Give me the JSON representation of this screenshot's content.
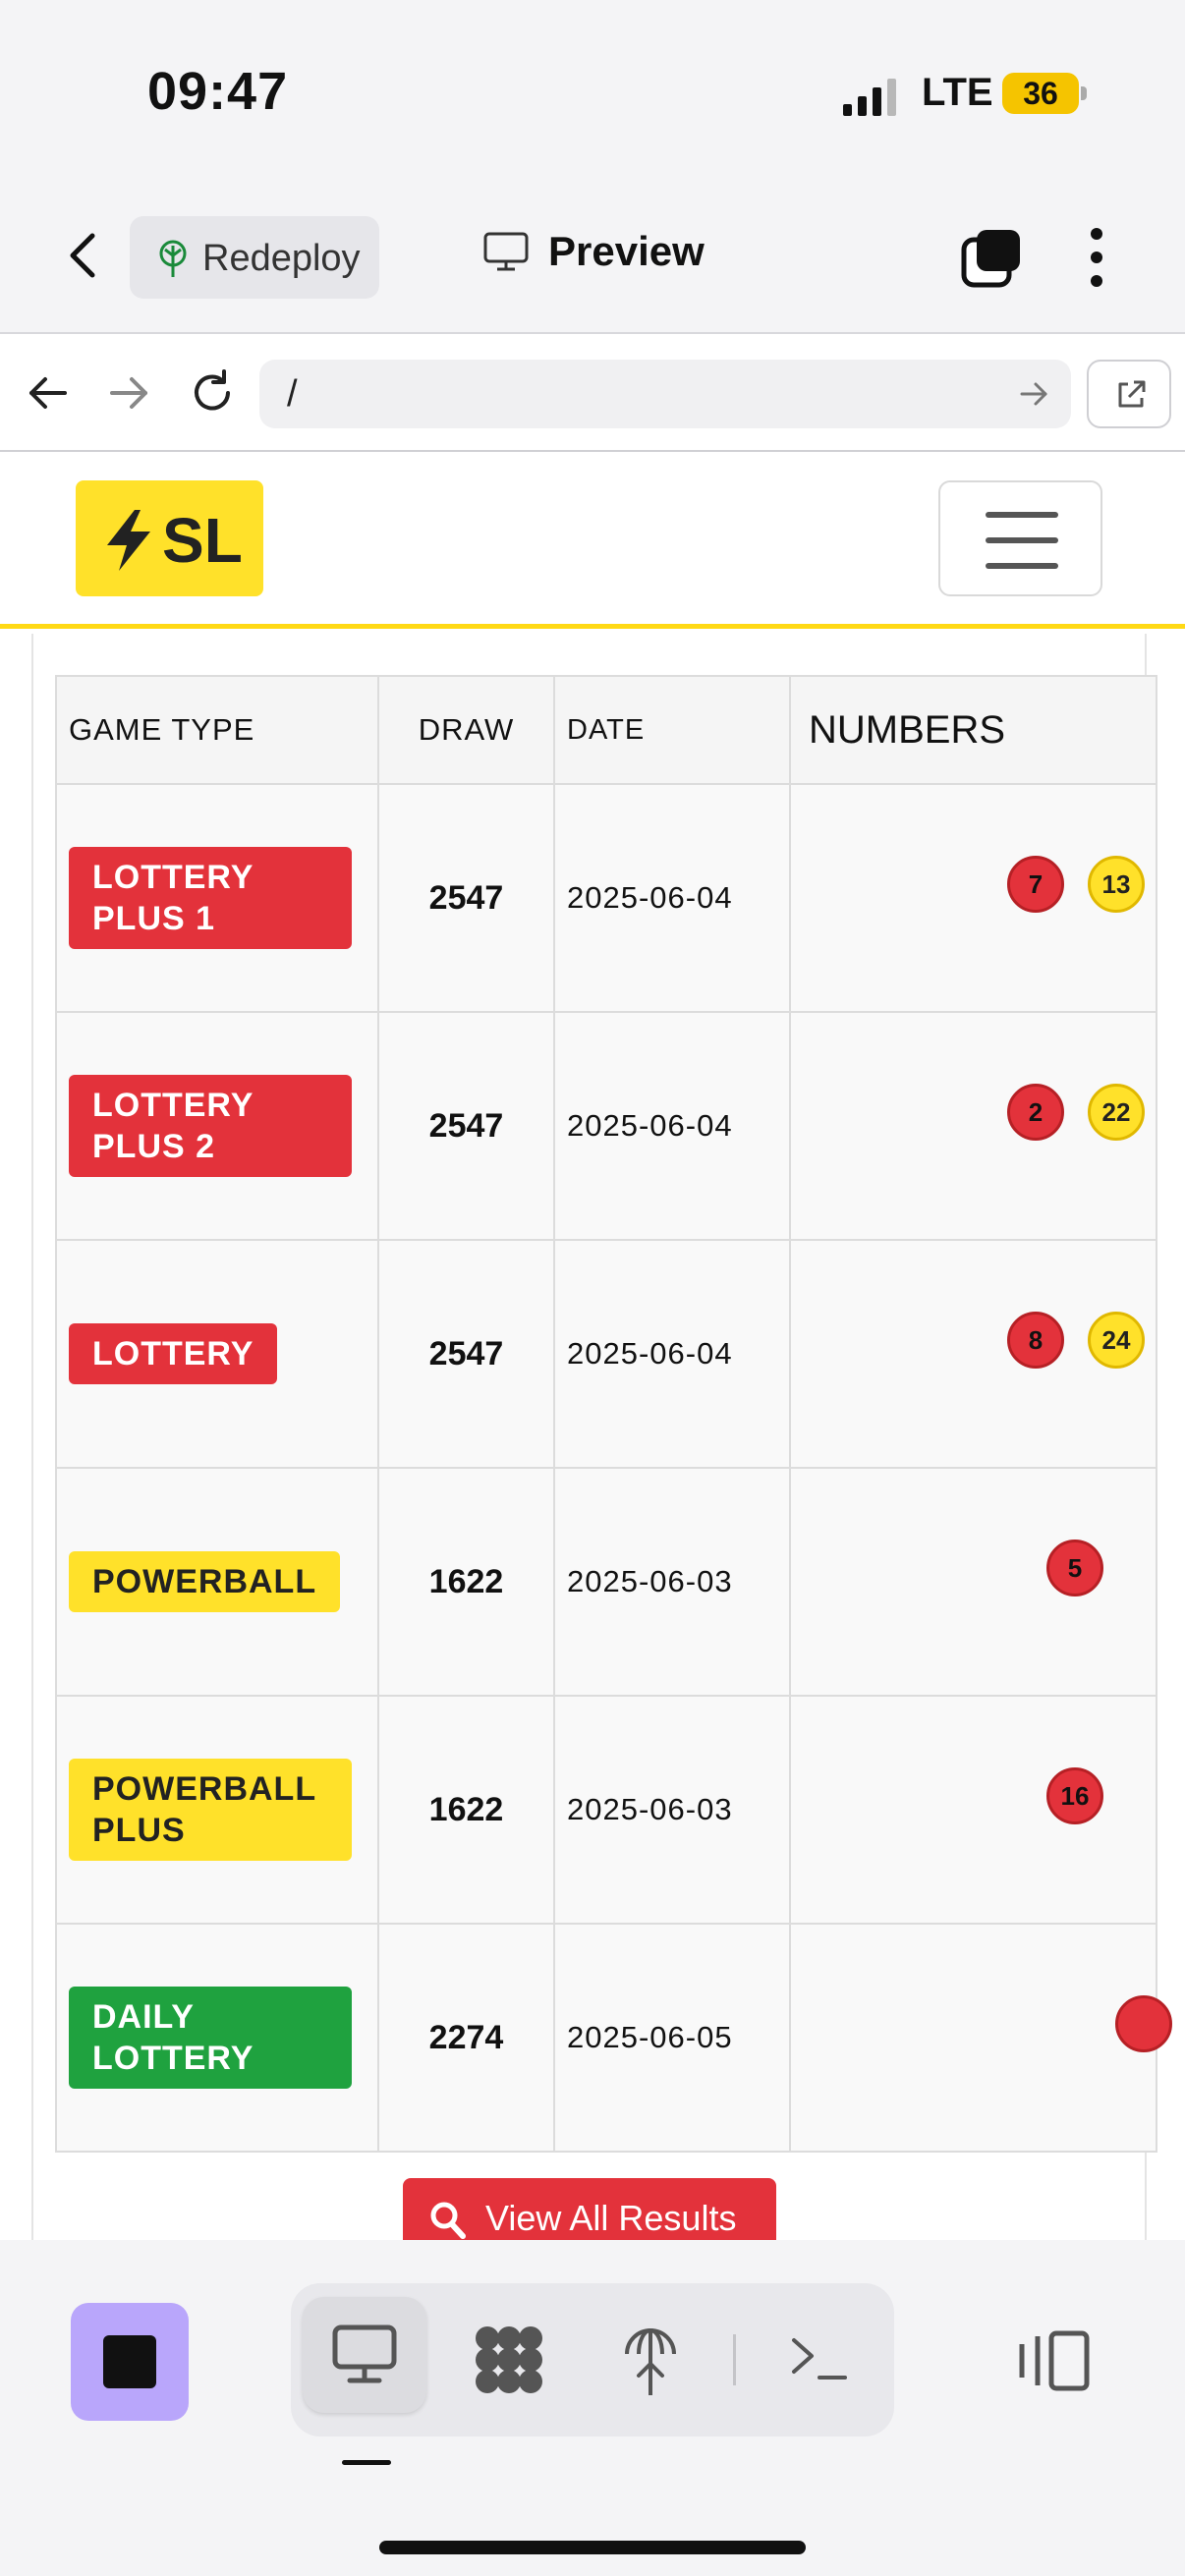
{
  "status_bar": {
    "time": "09:47",
    "network": "LTE",
    "battery": "36"
  },
  "app_toolbar": {
    "redeploy_label": "Redeploy",
    "preview_label": "Preview"
  },
  "browser": {
    "url": "/"
  },
  "site": {
    "logo_text": "SL"
  },
  "table": {
    "headers": {
      "game_type": "GAME TYPE",
      "draw": "DRAW",
      "date": "DATE",
      "numbers": "NUMBERS"
    },
    "rows": [
      {
        "game": "LOTTERY PLUS 1",
        "color": "red",
        "draw": "2547",
        "date": "2025-06-04",
        "balls": [
          "7",
          "13"
        ]
      },
      {
        "game": "LOTTERY PLUS 2",
        "color": "red",
        "draw": "2547",
        "date": "2025-06-04",
        "balls": [
          "2",
          "22"
        ]
      },
      {
        "game": "LOTTERY",
        "color": "red",
        "draw": "2547",
        "date": "2025-06-04",
        "balls": [
          "8",
          "24"
        ]
      },
      {
        "game": "POWERBALL",
        "color": "yellow",
        "draw": "1622",
        "date": "2025-06-03",
        "balls": [
          "5"
        ]
      },
      {
        "game": "POWERBALL PLUS",
        "color": "yellow",
        "draw": "1622",
        "date": "2025-06-03",
        "balls": [
          "16"
        ]
      },
      {
        "game": "DAILY LOTTERY",
        "color": "green",
        "draw": "2274",
        "date": "2025-06-05",
        "balls": [
          ""
        ]
      }
    ]
  },
  "view_all_label": "View All Results",
  "colors": {
    "brand_yellow": "#ffe12a",
    "red": "#e3323b",
    "green": "#1fa23f",
    "stop_purple": "#b9a6fb"
  }
}
